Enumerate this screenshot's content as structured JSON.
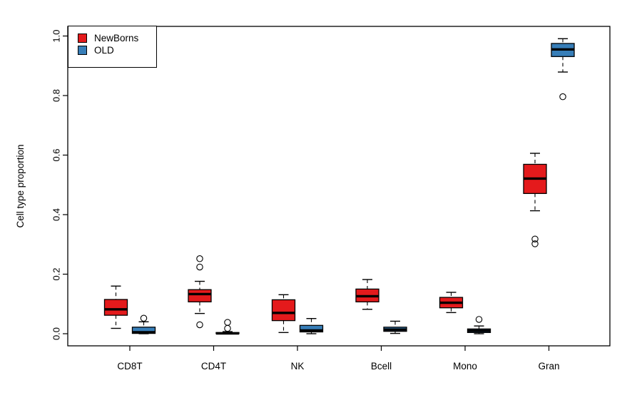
{
  "chart_data": {
    "type": "boxplot",
    "title": "",
    "ylabel": "Cell type proportion",
    "xlabel": "",
    "ylim": [
      0,
      1
    ],
    "ytick_labels": [
      "0.0",
      "0.2",
      "0.4",
      "0.6",
      "0.8",
      "1.0"
    ],
    "categories": [
      "CD8T",
      "CD4T",
      "NK",
      "Bcell",
      "Mono",
      "Gran"
    ],
    "grid": false,
    "legend": {
      "position": "topleft",
      "items": [
        {
          "label": "NewBorns",
          "color": "#e41a1c"
        },
        {
          "label": "OLD",
          "color": "#377eb8"
        }
      ]
    },
    "series": [
      {
        "name": "NewBorns",
        "color": "#e41a1c",
        "boxes": [
          {
            "category": "CD8T",
            "whisker_low": 0.018,
            "q1": 0.062,
            "median": 0.082,
            "q3": 0.115,
            "whisker_high": 0.16,
            "outliers": []
          },
          {
            "category": "CD4T",
            "whisker_low": 0.068,
            "q1": 0.107,
            "median": 0.133,
            "q3": 0.148,
            "whisker_high": 0.176,
            "outliers": [
              0.03,
              0.224,
              0.252
            ]
          },
          {
            "category": "NK",
            "whisker_low": 0.004,
            "q1": 0.044,
            "median": 0.07,
            "q3": 0.114,
            "whisker_high": 0.131,
            "outliers": []
          },
          {
            "category": "Bcell",
            "whisker_low": 0.082,
            "q1": 0.107,
            "median": 0.126,
            "q3": 0.15,
            "whisker_high": 0.182,
            "outliers": []
          },
          {
            "category": "Mono",
            "whisker_low": 0.071,
            "q1": 0.087,
            "median": 0.104,
            "q3": 0.122,
            "whisker_high": 0.139,
            "outliers": []
          },
          {
            "category": "Gran",
            "whisker_low": 0.413,
            "q1": 0.471,
            "median": 0.521,
            "q3": 0.569,
            "whisker_high": 0.606,
            "outliers": [
              0.302,
              0.318
            ]
          }
        ]
      },
      {
        "name": "OLD",
        "color": "#377eb8",
        "boxes": [
          {
            "category": "CD8T",
            "whisker_low": 0.0,
            "q1": 0.001,
            "median": 0.005,
            "q3": 0.022,
            "whisker_high": 0.04,
            "outliers": [
              0.052
            ]
          },
          {
            "category": "CD4T",
            "whisker_low": 0.0,
            "q1": 0.0,
            "median": 0.001,
            "q3": 0.004,
            "whisker_high": 0.007,
            "outliers": [
              0.018,
              0.038
            ]
          },
          {
            "category": "NK",
            "whisker_low": 0.0,
            "q1": 0.006,
            "median": 0.011,
            "q3": 0.028,
            "whisker_high": 0.051,
            "outliers": []
          },
          {
            "category": "Bcell",
            "whisker_low": 0.001,
            "q1": 0.008,
            "median": 0.014,
            "q3": 0.022,
            "whisker_high": 0.042,
            "outliers": []
          },
          {
            "category": "Mono",
            "whisker_low": 0.0,
            "q1": 0.004,
            "median": 0.01,
            "q3": 0.016,
            "whisker_high": 0.026,
            "outliers": [
              0.048
            ]
          },
          {
            "category": "Gran",
            "whisker_low": 0.879,
            "q1": 0.931,
            "median": 0.955,
            "q3": 0.975,
            "whisker_high": 0.991,
            "outliers": [
              0.796
            ]
          }
        ]
      }
    ]
  },
  "colors": {
    "frame": "#000000",
    "box_stroke": "#000000",
    "median": "#000000",
    "background": "#ffffff"
  }
}
